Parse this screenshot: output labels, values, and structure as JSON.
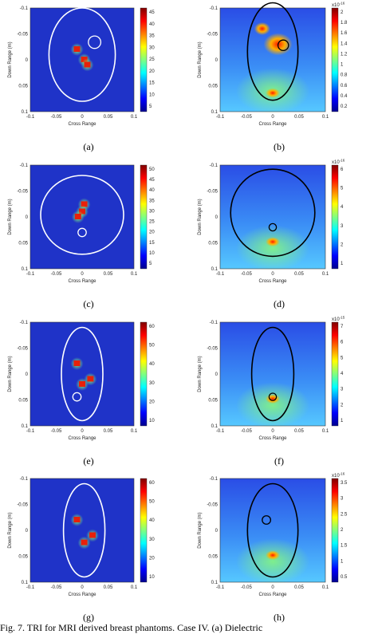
{
  "figure": {
    "y_axis_label": "Down Range (m)",
    "x_axis_label": "Cross Range",
    "colorbar_exponent_base": "x10",
    "panels": [
      {
        "caption": "(a)",
        "xticks": [
          "-0.1",
          "-0.05",
          "0",
          "0.05",
          "0.1"
        ],
        "yticks": [
          "-0.1",
          "-0.05",
          "0",
          "0.05",
          "0.1"
        ],
        "colorbar_ticks": [
          "45",
          "40",
          "35",
          "30",
          "25",
          "20",
          "15",
          "10",
          "5"
        ]
      },
      {
        "caption": "(b)",
        "xticks": [
          "-0.1",
          "-0.05",
          "0",
          "0.05",
          "0.1"
        ],
        "yticks": [
          "-0.1",
          "-0.05",
          "0",
          "0.05",
          "0.1"
        ],
        "colorbar_exponent": "-16",
        "colorbar_ticks": [
          "2",
          "1.8",
          "1.6",
          "1.4",
          "1.2",
          "1",
          "0.8",
          "0.6",
          "0.4",
          "0.2"
        ]
      },
      {
        "caption": "(c)",
        "xticks": [
          "-0.1",
          "-0.05",
          "0",
          "0.05",
          "0.1"
        ],
        "yticks": [
          "-0.1",
          "-0.05",
          "0",
          "0.05",
          "0.1"
        ],
        "colorbar_ticks": [
          "50",
          "45",
          "40",
          "35",
          "30",
          "25",
          "20",
          "15",
          "10",
          "5"
        ]
      },
      {
        "caption": "(d)",
        "xticks": [
          "-0.1",
          "-0.05",
          "0",
          "0.05",
          "0.1"
        ],
        "yticks": [
          "-0.1",
          "-0.05",
          "0",
          "0.05",
          "0.1"
        ],
        "colorbar_exponent": "-16",
        "colorbar_ticks": [
          "6",
          "5",
          "4",
          "3",
          "2",
          "1"
        ]
      },
      {
        "caption": "(e)",
        "xticks": [
          "-0.1",
          "-0.05",
          "0",
          "0.05",
          "0.1"
        ],
        "yticks": [
          "-0.1",
          "-0.05",
          "0",
          "0.05",
          "0.1"
        ],
        "colorbar_ticks": [
          "60",
          "50",
          "40",
          "30",
          "20",
          "10"
        ]
      },
      {
        "caption": "(f)",
        "xticks": [
          "-0.1",
          "-0.05",
          "0",
          "0.05",
          "0.1"
        ],
        "yticks": [
          "-0.1",
          "-0.05",
          "0",
          "0.05",
          "0.1"
        ],
        "colorbar_exponent": "-15",
        "colorbar_ticks": [
          "7",
          "6",
          "5",
          "4",
          "3",
          "2",
          "1"
        ]
      },
      {
        "caption": "(g)",
        "xticks": [
          "-0.1",
          "-0.05",
          "0",
          "0.05",
          "0.1"
        ],
        "yticks": [
          "-0.1",
          "-0.05",
          "0",
          "0.05",
          "0.1"
        ],
        "colorbar_ticks": [
          "60",
          "50",
          "40",
          "30",
          "20",
          "10"
        ]
      },
      {
        "caption": "(h)",
        "xticks": [
          "-0.1",
          "-0.05",
          "0",
          "0.05",
          "0.1"
        ],
        "yticks": [
          "-0.1",
          "-0.05",
          "0",
          "0.05",
          "0.1"
        ],
        "colorbar_exponent": "-16",
        "colorbar_ticks": [
          "3.5",
          "3",
          "2.5",
          "2",
          "1.5",
          "1",
          "0.5"
        ]
      }
    ],
    "caption": "Fig. 7.   TRI for MRI derived breast phantoms. Case IV. (a) Dielectric"
  }
}
